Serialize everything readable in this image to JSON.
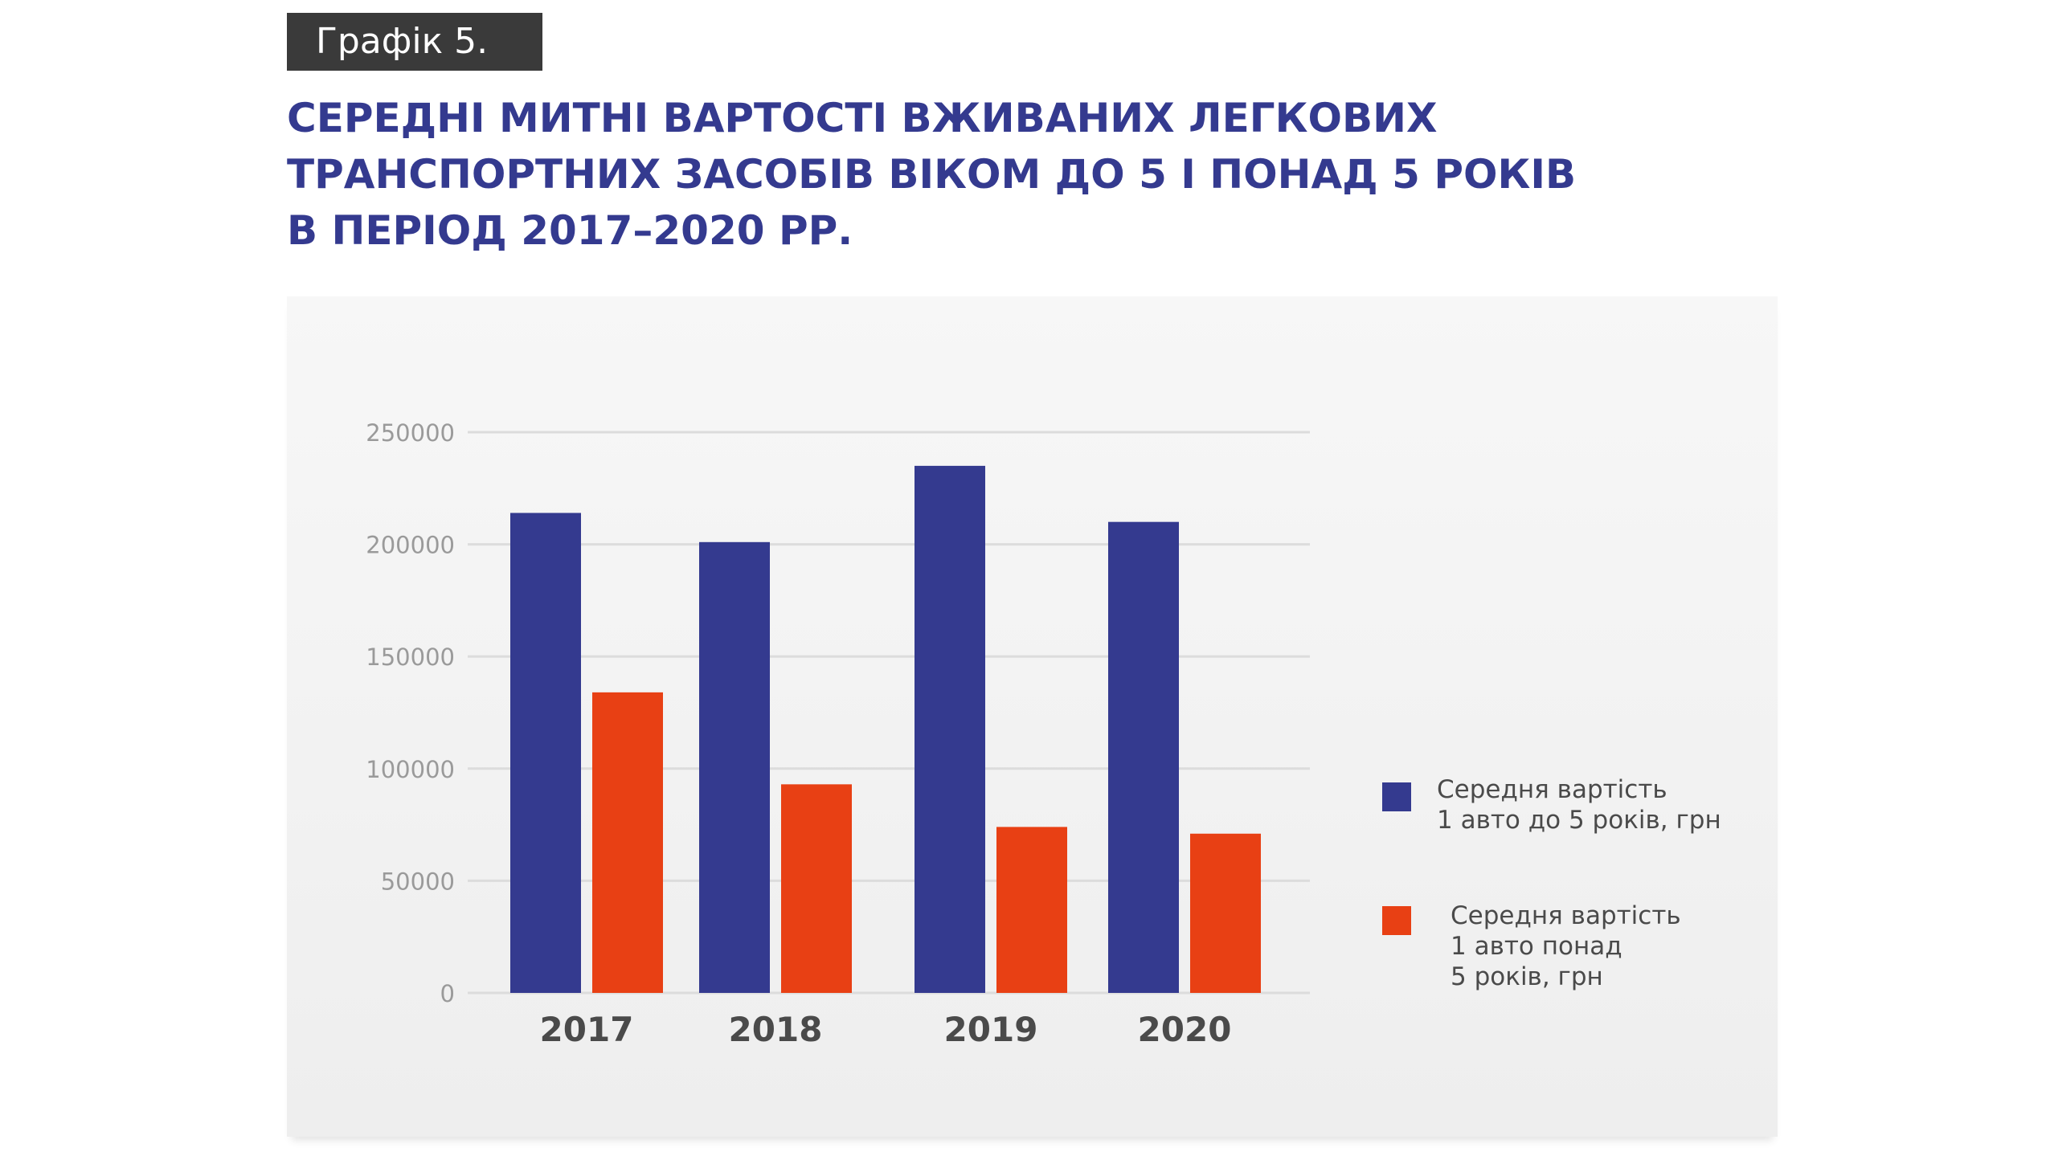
{
  "badge": "Графік 5.",
  "title_lines": [
    "СЕРЕДНІ МИТНІ ВАРТОСТІ ВЖИВАНИХ ЛЕГКОВИХ",
    "ТРАНСПОРТНИХ ЗАСОБІВ ВІКОМ ДО 5 І ПОНАД 5 РОКІВ",
    "В ПЕРІОД 2017–2020 РР."
  ],
  "legend": {
    "series0": [
      "Середня вартість",
      "1 авто до 5 років, грн"
    ],
    "series1": [
      "Середня вартість",
      "1 авто понад",
      "5 років, грн"
    ]
  },
  "chart_data": {
    "type": "bar",
    "categories": [
      "2017",
      "2018",
      "2019",
      "2020"
    ],
    "series": [
      {
        "name": "Середня вартість 1 авто до 5 років, грн",
        "values": [
          214000,
          201000,
          235000,
          210000
        ],
        "color": "#343a8f"
      },
      {
        "name": "Середня вартість 1 авто понад 5 років, грн",
        "values": [
          134000,
          93000,
          74000,
          71000
        ],
        "color": "#e84014"
      }
    ],
    "ylim": [
      0,
      250000
    ],
    "yticks": [
      "0",
      "50000",
      "100000",
      "150000",
      "200000",
      "250000"
    ],
    "grid": true,
    "legend_position": "right"
  }
}
